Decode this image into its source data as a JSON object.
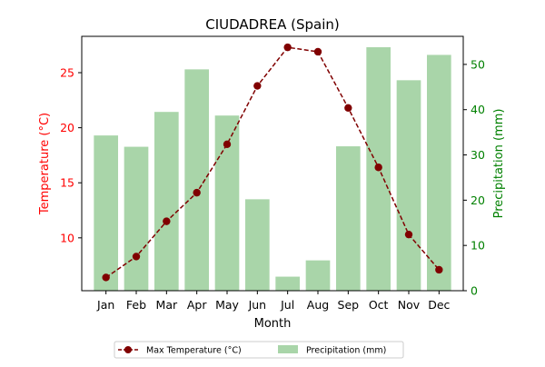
{
  "chart_data": {
    "type": "bar+line",
    "title": "CIUDADREA (Spain)",
    "xlabel": "Month",
    "categories": [
      "Jan",
      "Feb",
      "Mar",
      "Apr",
      "May",
      "Jun",
      "Jul",
      "Aug",
      "Sep",
      "Oct",
      "Nov",
      "Dec"
    ],
    "left_axis": {
      "label": "Temperature (°C)",
      "color": "#ff0000",
      "ylim": [
        5.2,
        28.3
      ],
      "ticks": [
        10,
        15,
        20,
        25
      ]
    },
    "right_axis": {
      "label": "Precipitation (mm)",
      "color": "#008000",
      "ylim": [
        0,
        56.2
      ],
      "ticks": [
        0,
        10,
        20,
        30,
        40,
        50
      ]
    },
    "series": [
      {
        "name": "Max Temperature (°C)",
        "kind": "line",
        "axis": "left",
        "color": "#800000",
        "values": [
          6.4,
          8.3,
          11.5,
          14.1,
          18.5,
          23.8,
          27.3,
          26.9,
          21.8,
          16.4,
          10.3,
          7.1
        ]
      },
      {
        "name": "Precipitation (mm)",
        "kind": "bar",
        "axis": "right",
        "color": "#a9d5a9",
        "values": [
          34.3,
          31.8,
          39.5,
          48.9,
          38.7,
          20.2,
          3.1,
          6.7,
          31.9,
          53.8,
          46.5,
          52.1
        ]
      }
    ],
    "legend": {
      "placement": "bottom-center",
      "entries": [
        "Max Temperature (°C)",
        "Precipitation (mm)"
      ]
    },
    "grid": false
  }
}
